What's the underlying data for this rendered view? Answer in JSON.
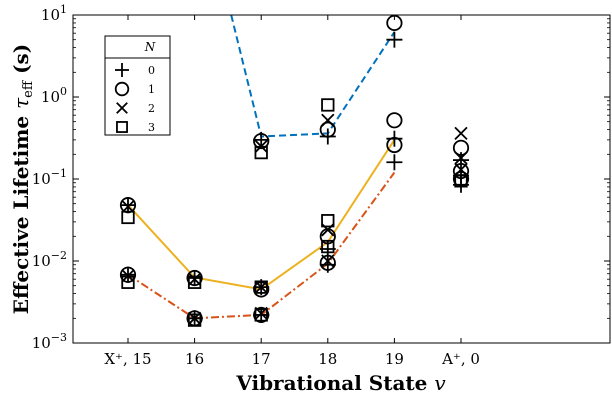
{
  "chart_data": {
    "type": "scatter",
    "xlabel": "Vibrational State v",
    "ylabel": "Effective Lifetime τeff (s)",
    "yscale": "log",
    "ylim": [
      0.001,
      10
    ],
    "grid": false,
    "legend": {
      "title": "N",
      "placement": "top-left"
    },
    "categories": [
      "X⁺, 15",
      "16",
      "17",
      "18",
      "19",
      "A⁺, 0"
    ],
    "y_ticks": [
      {
        "value": 0.001,
        "base": "10",
        "exp": "−3"
      },
      {
        "value": 0.01,
        "base": "10",
        "exp": "−2"
      },
      {
        "value": 0.1,
        "base": "10",
        "exp": "−1"
      },
      {
        "value": 1,
        "base": "10",
        "exp": "0"
      },
      {
        "value": 10,
        "base": "10",
        "exp": "1"
      }
    ],
    "series": [
      {
        "name": "0",
        "marker": "plus",
        "points": [
          {
            "x": 0,
            "y": 0.048
          },
          {
            "x": 0,
            "y": 0.0068
          },
          {
            "x": 1,
            "y": 0.0062
          },
          {
            "x": 1,
            "y": 0.002
          },
          {
            "x": 2,
            "y": 0.3
          },
          {
            "x": 2,
            "y": 0.0048
          },
          {
            "x": 2,
            "y": 0.0022
          },
          {
            "x": 3,
            "y": 0.33
          },
          {
            "x": 3,
            "y": 0.014
          },
          {
            "x": 3,
            "y": 0.009
          },
          {
            "x": 4,
            "y": 5.0
          },
          {
            "x": 4,
            "y": 0.31
          },
          {
            "x": 4,
            "y": 0.16
          },
          {
            "x": 5,
            "y": 0.17
          },
          {
            "x": 5,
            "y": 0.11
          },
          {
            "x": 5,
            "y": 0.085
          }
        ]
      },
      {
        "name": "1",
        "marker": "circle",
        "points": [
          {
            "x": 0,
            "y": 0.048
          },
          {
            "x": 0,
            "y": 0.0068
          },
          {
            "x": 1,
            "y": 0.0062
          },
          {
            "x": 1,
            "y": 0.002
          },
          {
            "x": 2,
            "y": 0.29
          },
          {
            "x": 2,
            "y": 0.0045
          },
          {
            "x": 2,
            "y": 0.0022
          },
          {
            "x": 3,
            "y": 0.4
          },
          {
            "x": 3,
            "y": 0.02
          },
          {
            "x": 3,
            "y": 0.0095
          },
          {
            "x": 4,
            "y": 8.0
          },
          {
            "x": 4,
            "y": 0.52
          },
          {
            "x": 4,
            "y": 0.26
          },
          {
            "x": 5,
            "y": 0.24
          },
          {
            "x": 5,
            "y": 0.125
          },
          {
            "x": 5,
            "y": 0.1
          }
        ]
      },
      {
        "name": "2",
        "marker": "x",
        "points": [
          {
            "x": 0,
            "y": 0.046
          },
          {
            "x": 0,
            "y": 0.0066
          },
          {
            "x": 1,
            "y": 0.006
          },
          {
            "x": 1,
            "y": 0.002
          },
          {
            "x": 2,
            "y": 0.25
          },
          {
            "x": 2,
            "y": 0.0048
          },
          {
            "x": 2,
            "y": 0.0023
          },
          {
            "x": 3,
            "y": 0.52
          },
          {
            "x": 3,
            "y": 0.024
          },
          {
            "x": 3,
            "y": 0.01
          },
          {
            "x": 5,
            "y": 0.36
          },
          {
            "x": 5,
            "y": 0.18
          },
          {
            "x": 5,
            "y": 0.13
          }
        ]
      },
      {
        "name": "3",
        "marker": "square",
        "points": [
          {
            "x": 0,
            "y": 0.034
          },
          {
            "x": 0,
            "y": 0.0055
          },
          {
            "x": 1,
            "y": 0.0055
          },
          {
            "x": 1,
            "y": 0.0019
          },
          {
            "x": 2,
            "y": 0.21
          },
          {
            "x": 2,
            "y": 0.0048
          },
          {
            "x": 2,
            "y": 0.0022
          },
          {
            "x": 3,
            "y": 0.8
          },
          {
            "x": 3,
            "y": 0.031
          },
          {
            "x": 3,
            "y": 0.015
          },
          {
            "x": 5,
            "y": 0.095
          }
        ]
      }
    ],
    "lines": [
      {
        "color": "#0072BD",
        "style": "dashed",
        "x": [
          1.55,
          2,
          3,
          4
        ],
        "y": [
          10,
          0.33,
          0.36,
          6.2
        ]
      },
      {
        "color": "#EDB120",
        "style": "solid",
        "x": [
          0,
          1,
          2,
          3,
          4
        ],
        "y": [
          0.048,
          0.0063,
          0.0045,
          0.017,
          0.3
        ]
      },
      {
        "color": "#D95319",
        "style": "dashdot",
        "x": [
          0,
          1,
          2,
          3,
          4
        ],
        "y": [
          0.0068,
          0.002,
          0.0022,
          0.0093,
          0.12
        ]
      }
    ]
  }
}
